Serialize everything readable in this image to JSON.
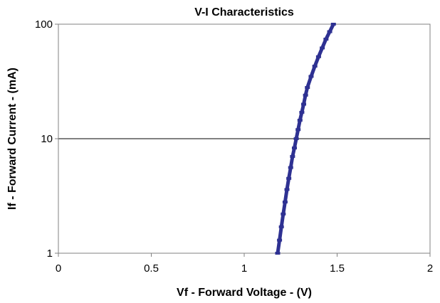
{
  "chart_data": {
    "type": "line",
    "title": "V-I Characteristics",
    "xlabel": "Vf - Forward Voltage - (V)",
    "ylabel": "If - Forward Current - (mA)",
    "xlim": [
      0,
      2
    ],
    "ylim": [
      1,
      100
    ],
    "yscale": "log",
    "x_ticks": [
      0,
      0.5,
      1,
      1.5,
      2
    ],
    "x_tick_labels": [
      "0",
      "0.5",
      "1",
      "1.5",
      "2"
    ],
    "y_ticks": [
      1,
      10,
      100
    ],
    "y_tick_labels": [
      "1",
      "10",
      "100"
    ],
    "grid": "horizontal major",
    "legend": "none",
    "series": [
      {
        "color": "#2e3192",
        "x": [
          1.18,
          1.19,
          1.2,
          1.21,
          1.22,
          1.23,
          1.24,
          1.25,
          1.26,
          1.27,
          1.28,
          1.29,
          1.3,
          1.31,
          1.32,
          1.33,
          1.34,
          1.36,
          1.38,
          1.4,
          1.42,
          1.44,
          1.46,
          1.48
        ],
        "y": [
          1.0,
          1.3,
          1.7,
          2.2,
          2.8,
          3.6,
          4.5,
          5.6,
          7.0,
          8.3,
          10.0,
          12.0,
          14.5,
          17.0,
          20.0,
          24.0,
          28.0,
          35.0,
          43.0,
          52.0,
          62.0,
          74.0,
          86.0,
          100.0
        ]
      }
    ]
  }
}
